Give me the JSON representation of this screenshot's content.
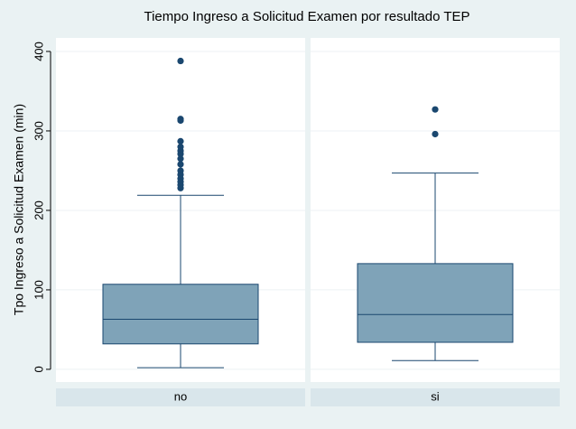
{
  "chart_data": {
    "type": "box",
    "title": "Tiempo Ingreso a Solicitud Examen por resultado TEP",
    "y_label": "Tpo Ingreso a Solicitud Examen (min)",
    "categories": [
      "no",
      "si"
    ],
    "boxes": [
      {
        "whisker_low": 2,
        "q1": 32,
        "median": 63,
        "q3": 107,
        "whisker_high": 219,
        "outliers": [
          388,
          315,
          313,
          287,
          280,
          275,
          271,
          265,
          258,
          250,
          245,
          240,
          236,
          232,
          228
        ]
      },
      {
        "whisker_low": 11,
        "q1": 34,
        "median": 69,
        "q3": 133,
        "whisker_high": 247,
        "outliers": [
          327,
          296
        ]
      }
    ],
    "color": "#7fa3b8",
    "edge_color": "#1a476f",
    "ylim": [
      -16,
      417
    ],
    "yticks": [
      0,
      100,
      200,
      300,
      400
    ],
    "grid": true
  }
}
